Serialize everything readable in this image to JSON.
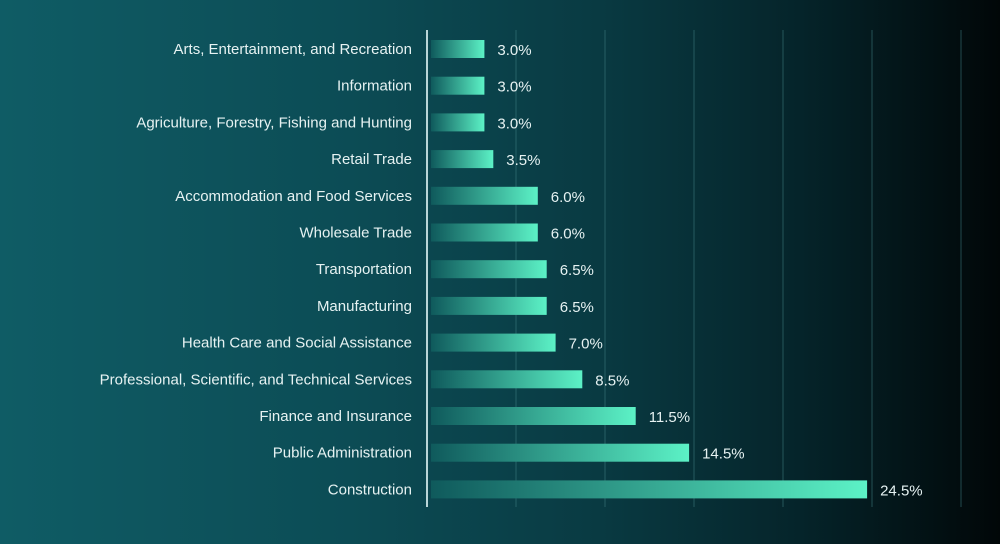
{
  "chart_data": {
    "type": "bar",
    "orientation": "horizontal",
    "title": "",
    "xlabel": "",
    "ylabel": "",
    "categories": [
      "Arts, Entertainment, and Recreation",
      "Information",
      "Agriculture, Forestry, Fishing and Hunting",
      "Retail Trade ",
      "Accommodation and Food Services",
      "Wholesale Trade",
      "Transportation",
      "Manufacturing",
      "Health Care and Social Assistance",
      "Professional, Scientific, and Technical Services",
      "Finance and Insurance",
      "Public Administration",
      "Construction"
    ],
    "values": [
      3.0,
      3.0,
      3.0,
      3.5,
      6.0,
      6.0,
      6.5,
      6.5,
      7.0,
      8.5,
      11.5,
      14.5,
      24.5
    ],
    "value_labels": [
      "3.0%",
      "3.0%",
      "3.0%",
      "3.5%",
      "6.0%",
      "6.0%",
      "6.5%",
      "6.5%",
      "7.0%",
      "8.5%",
      "11.5%",
      "14.5%",
      "24.5%"
    ],
    "xlim": [
      0,
      30
    ],
    "grid": true,
    "legend": "none",
    "colors": {
      "bar_start": "#0f5a5c",
      "bar_end": "#5cf2c6",
      "label_text": "#e6f2f2",
      "gridline": "#3f7d82",
      "axis_line": "#b9d6d8"
    }
  }
}
